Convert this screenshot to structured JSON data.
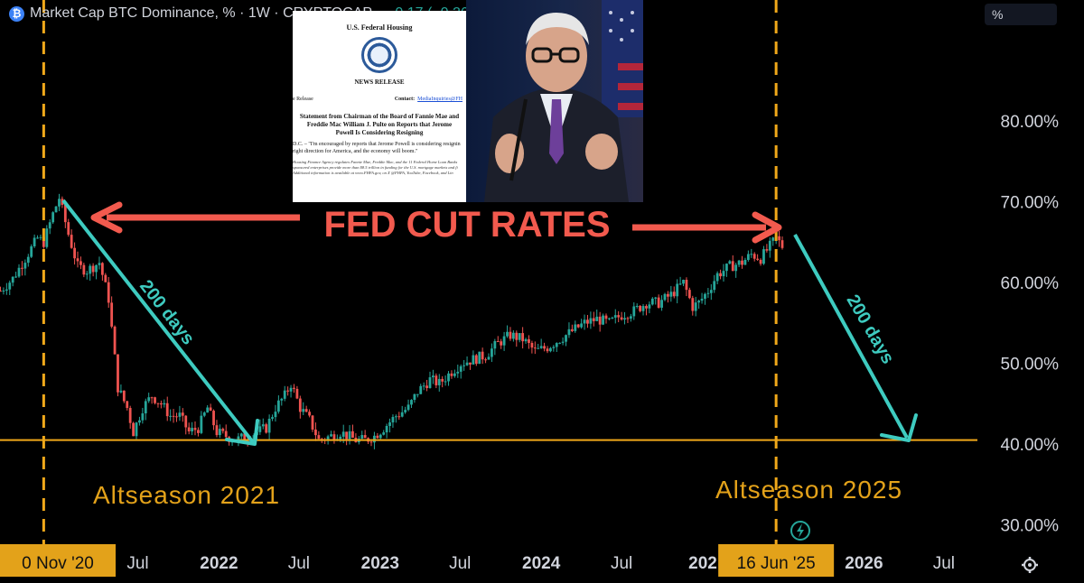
{
  "header": {
    "symbol_icon": "bitcoin-icon",
    "title": "Market Cap BTC Dominance, % · 1W · CRYPTOCAP",
    "change": "−0.17 (−0.26%)",
    "unit_button": "%"
  },
  "news_image": {
    "agency": "U.S. Federal Housing",
    "heading": "NEWS RELEASE",
    "release_label": "e Release",
    "contact_label": "Contact:",
    "contact_value": "MediaInquiries@FH",
    "title": "Statement from Chairman of the Board of Fannie Mae and Freddie Mac William J. Pulte on Reports that Jerome Powell Is Considering Resigning",
    "body": "D.C. – \"I'm encouraged by reports that Jerome Powell is considering resignin right direction for America, and the economy will boom.\"",
    "fine_print": "Housing Finance Agency regulates Fannie Mae, Freddie Mac, and the 11 Federal Home Loan Banks sponsored enterprises provide more than $8.5 trillion in funding for the U.S. mortgage markets and fi Additional information is available at www.FHFA.gov, on X @FHFA, YouTube, Facebook, and Lin"
  },
  "colors": {
    "background": "#000000",
    "bull": "#26a69a",
    "bear": "#ef5350",
    "event_line": "#f0a81a",
    "support_line": "#f0a81a",
    "annotation_red": "#f25a4e",
    "annotation_teal": "#3ecbc0",
    "season_text": "#e3a21a",
    "axis_text": "#d1d4dc"
  },
  "chart_data": {
    "type": "candlestick",
    "y_unit": "%",
    "ylim": [
      27.5,
      95
    ],
    "ytick_labels": [
      "30.00%",
      "40.00%",
      "50.00%",
      "60.00%",
      "70.00%",
      "80.00%"
    ],
    "yticks": [
      30,
      40,
      50,
      60,
      70,
      80
    ],
    "xlim": [
      "2020-08-23",
      "2026-09-15"
    ],
    "xticks": [
      {
        "date": "2021-07-01",
        "label": "Jul",
        "bold": false
      },
      {
        "date": "2022-01-01",
        "label": "2022",
        "bold": true
      },
      {
        "date": "2022-07-01",
        "label": "Jul",
        "bold": false
      },
      {
        "date": "2023-01-01",
        "label": "2023",
        "bold": true
      },
      {
        "date": "2023-07-01",
        "label": "Jul",
        "bold": false
      },
      {
        "date": "2024-01-01",
        "label": "2024",
        "bold": true
      },
      {
        "date": "2024-07-01",
        "label": "Jul",
        "bold": false
      },
      {
        "date": "2025-01-01",
        "label": "202",
        "bold": true
      },
      {
        "date": "2026-01-01",
        "label": "2026",
        "bold": true
      },
      {
        "date": "2026-07-01",
        "label": "Jul",
        "bold": false
      }
    ],
    "highlighted_dates": [
      {
        "date": "2020-11-30",
        "label": "0 Nov '20"
      },
      {
        "date": "2025-06-16",
        "label": "16 Jun '25"
      }
    ],
    "event_lines": [
      "2020-11-30",
      "2025-06-16"
    ],
    "horizontal_line": 40.5,
    "weekly_close_path": [
      [
        "2020-08-24",
        59.0
      ],
      [
        "2020-09-21",
        60.5
      ],
      [
        "2020-10-19",
        63.0
      ],
      [
        "2020-11-16",
        65.5
      ],
      [
        "2020-11-30",
        65.0
      ],
      [
        "2020-12-21",
        68.5
      ],
      [
        "2021-01-04",
        70.5
      ],
      [
        "2021-01-25",
        66.0
      ],
      [
        "2021-02-15",
        62.0
      ],
      [
        "2021-03-08",
        61.5
      ],
      [
        "2021-04-05",
        62.5
      ],
      [
        "2021-04-26",
        58.0
      ],
      [
        "2021-05-17",
        47.0
      ],
      [
        "2021-06-07",
        44.5
      ],
      [
        "2021-06-21",
        41.5
      ],
      [
        "2021-07-12",
        44.5
      ],
      [
        "2021-08-02",
        46.0
      ],
      [
        "2021-08-23",
        45.0
      ],
      [
        "2021-09-13",
        43.5
      ],
      [
        "2021-10-04",
        43.5
      ],
      [
        "2021-10-25",
        41.5
      ],
      [
        "2021-11-15",
        42.0
      ],
      [
        "2021-12-06",
        44.5
      ],
      [
        "2021-12-27",
        41.5
      ],
      [
        "2022-01-17",
        41.0
      ],
      [
        "2022-02-07",
        40.5
      ],
      [
        "2022-03-07",
        41.0
      ],
      [
        "2022-03-28",
        41.5
      ],
      [
        "2022-04-18",
        42.0
      ],
      [
        "2022-05-09",
        44.5
      ],
      [
        "2022-05-30",
        46.0
      ],
      [
        "2022-06-13",
        47.5
      ],
      [
        "2022-07-04",
        44.5
      ],
      [
        "2022-07-25",
        43.0
      ],
      [
        "2022-08-15",
        40.5
      ],
      [
        "2022-09-12",
        41.0
      ],
      [
        "2022-10-03",
        41.5
      ],
      [
        "2022-11-07",
        40.5
      ],
      [
        "2022-11-28",
        40.5
      ],
      [
        "2022-12-19",
        41.0
      ],
      [
        "2023-01-09",
        42.0
      ],
      [
        "2023-02-06",
        43.5
      ],
      [
        "2023-03-06",
        44.5
      ],
      [
        "2023-03-27",
        46.5
      ],
      [
        "2023-04-24",
        48.0
      ],
      [
        "2023-05-15",
        47.5
      ],
      [
        "2023-06-12",
        49.0
      ],
      [
        "2023-07-03",
        50.0
      ],
      [
        "2023-07-31",
        50.5
      ],
      [
        "2023-08-28",
        51.0
      ],
      [
        "2023-09-25",
        52.5
      ],
      [
        "2023-10-23",
        53.5
      ],
      [
        "2023-11-20",
        53.0
      ],
      [
        "2023-12-18",
        51.5
      ],
      [
        "2024-01-15",
        52.0
      ],
      [
        "2024-02-12",
        53.0
      ],
      [
        "2024-03-11",
        54.0
      ],
      [
        "2024-04-08",
        55.0
      ],
      [
        "2024-05-06",
        55.5
      ],
      [
        "2024-06-03",
        55.0
      ],
      [
        "2024-07-01",
        56.0
      ],
      [
        "2024-07-29",
        56.5
      ],
      [
        "2024-08-26",
        57.5
      ],
      [
        "2024-09-23",
        57.5
      ],
      [
        "2024-10-21",
        58.5
      ],
      [
        "2024-11-18",
        60.0
      ],
      [
        "2024-12-09",
        57.0
      ],
      [
        "2024-12-23",
        57.5
      ],
      [
        "2025-01-13",
        59.0
      ],
      [
        "2025-02-03",
        61.0
      ],
      [
        "2025-03-03",
        62.0
      ],
      [
        "2025-03-31",
        62.5
      ],
      [
        "2025-04-21",
        63.5
      ],
      [
        "2025-05-12",
        63.0
      ],
      [
        "2025-06-02",
        64.5
      ],
      [
        "2025-06-16",
        65.5
      ],
      [
        "2025-06-30",
        64.5
      ]
    ]
  },
  "annotations": {
    "fed_cut_rates": "FED CUT RATES",
    "days_left": "200 days",
    "days_right": "200 days",
    "season_2021": "Altseason 2021",
    "season_2025": "Altseason 2025"
  },
  "footer": {
    "settings_icon": "settings-icon",
    "alert_icon": "lightning-icon"
  }
}
